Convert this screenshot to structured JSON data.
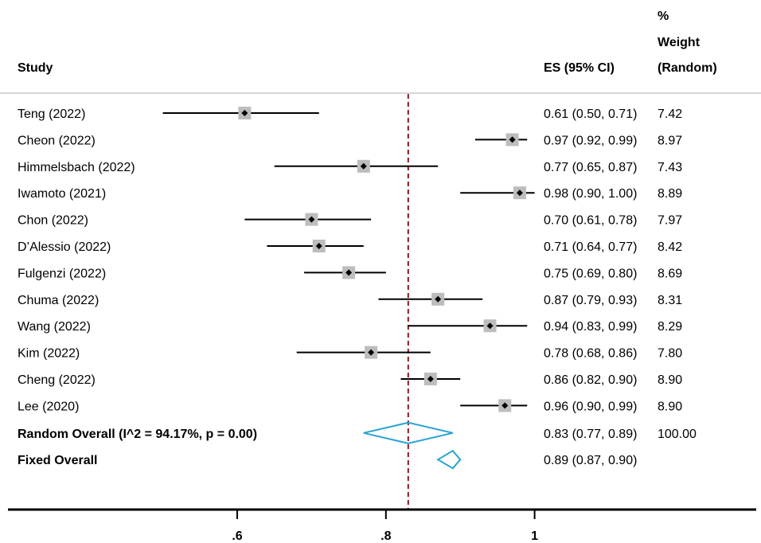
{
  "headers": {
    "study": "Study",
    "es": "ES (95% CI)",
    "weight_line1": "%",
    "weight_line2": "Weight",
    "weight_line3": "(Random)"
  },
  "chart_data": {
    "type": "forest",
    "xticks": [
      0.6,
      0.8,
      1.0
    ],
    "xtick_labels": [
      ".6",
      ".8",
      "1"
    ],
    "xlim": [
      0.44,
      1.15
    ],
    "reference_line": 0.83,
    "studies": [
      {
        "name": "Teng (2022)",
        "es": 0.61,
        "lo": 0.5,
        "hi": 0.71,
        "ci_text": "0.61 (0.50, 0.71)",
        "weight": "7.42"
      },
      {
        "name": "Cheon (2022)",
        "es": 0.97,
        "lo": 0.92,
        "hi": 0.99,
        "ci_text": "0.97 (0.92, 0.99)",
        "weight": "8.97"
      },
      {
        "name": "Himmelsbach (2022)",
        "es": 0.77,
        "lo": 0.65,
        "hi": 0.87,
        "ci_text": "0.77 (0.65, 0.87)",
        "weight": "7.43"
      },
      {
        "name": "Iwamoto (2021)",
        "es": 0.98,
        "lo": 0.9,
        "hi": 1.0,
        "ci_text": "0.98 (0.90, 1.00)",
        "weight": "8.89"
      },
      {
        "name": "Chon (2022)",
        "es": 0.7,
        "lo": 0.61,
        "hi": 0.78,
        "ci_text": "0.70 (0.61, 0.78)",
        "weight": "7.97"
      },
      {
        "name": "D’Alessio (2022)",
        "es": 0.71,
        "lo": 0.64,
        "hi": 0.77,
        "ci_text": "0.71 (0.64, 0.77)",
        "weight": "8.42"
      },
      {
        "name": "Fulgenzi (2022)",
        "es": 0.75,
        "lo": 0.69,
        "hi": 0.8,
        "ci_text": "0.75 (0.69, 0.80)",
        "weight": "8.69"
      },
      {
        "name": "Chuma (2022)",
        "es": 0.87,
        "lo": 0.79,
        "hi": 0.93,
        "ci_text": "0.87 (0.79, 0.93)",
        "weight": "8.31"
      },
      {
        "name": "Wang (2022)",
        "es": 0.94,
        "lo": 0.83,
        "hi": 0.99,
        "ci_text": "0.94 (0.83, 0.99)",
        "weight": "8.29"
      },
      {
        "name": "Kim (2022)",
        "es": 0.78,
        "lo": 0.68,
        "hi": 0.86,
        "ci_text": "0.78 (0.68, 0.86)",
        "weight": "7.80"
      },
      {
        "name": "Cheng (2022)",
        "es": 0.86,
        "lo": 0.82,
        "hi": 0.9,
        "ci_text": "0.86 (0.82, 0.90)",
        "weight": "8.90"
      },
      {
        "name": "Lee (2020)",
        "es": 0.96,
        "lo": 0.9,
        "hi": 0.99,
        "ci_text": "0.96 (0.90, 0.99)",
        "weight": "8.90"
      }
    ],
    "overall": [
      {
        "name": "Random Overall  (I^2 = 94.17%, p = 0.00)",
        "es": 0.83,
        "lo": 0.77,
        "hi": 0.89,
        "ci_text": "0.83 (0.77, 0.89)",
        "weight": "100.00"
      },
      {
        "name": "Fixed Overall",
        "es": 0.89,
        "lo": 0.87,
        "hi": 0.9,
        "ci_text": "0.89 (0.87, 0.90)",
        "weight": ""
      }
    ],
    "colors": {
      "marker_box": "#bdbdbd",
      "diamond": "#29a3d4",
      "reference": "#8b1a1a",
      "line": "#000000",
      "divider": "#c8c8c8"
    }
  }
}
